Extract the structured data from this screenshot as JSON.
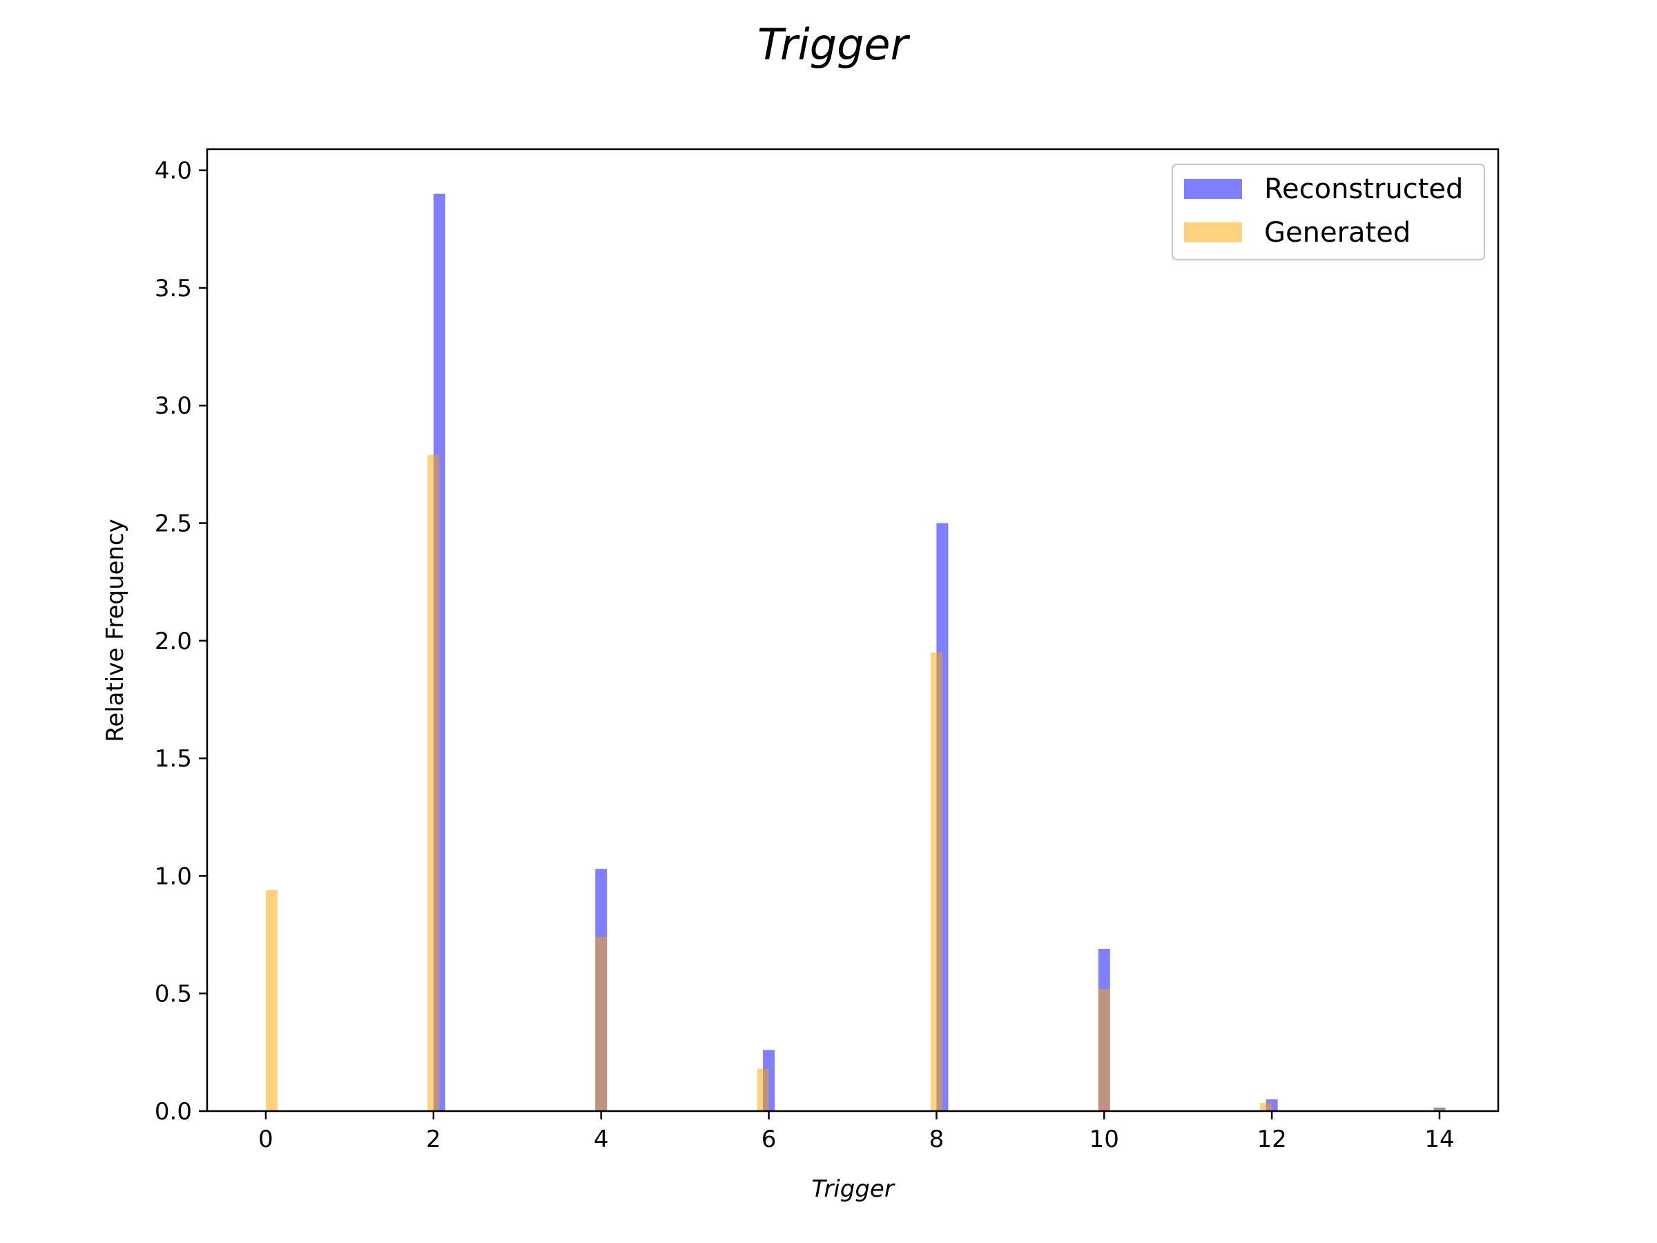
{
  "chart_data": {
    "type": "bar",
    "title": "Trigger",
    "xlabel": "Trigger",
    "ylabel": "Relative Frequency",
    "xlim": [
      -0.7,
      14.7
    ],
    "ylim": [
      0,
      4.09
    ],
    "xticks": [
      0,
      2,
      4,
      6,
      8,
      10,
      12,
      14
    ],
    "yticks": [
      0.0,
      0.5,
      1.0,
      1.5,
      2.0,
      2.5,
      3.0,
      3.5,
      4.0
    ],
    "bin_width": 0.14,
    "grid": false,
    "legend_position": "top-right",
    "series": [
      {
        "name": "Reconstructed",
        "color": "#0000ff",
        "opacity": 0.5,
        "x": [
          2.07,
          4.0,
          6.0,
          8.07,
          10.0,
          12.0,
          14.0
        ],
        "values": [
          3.9,
          1.03,
          0.26,
          2.5,
          0.69,
          0.05,
          0.015
        ]
      },
      {
        "name": "Generated",
        "color": "#ffa500",
        "opacity": 0.5,
        "x": [
          0.07,
          2.0,
          4.0,
          5.93,
          8.0,
          10.0,
          11.93,
          14.0
        ],
        "values": [
          0.94,
          2.79,
          0.74,
          0.18,
          1.95,
          0.52,
          0.035,
          0.01
        ]
      }
    ]
  }
}
